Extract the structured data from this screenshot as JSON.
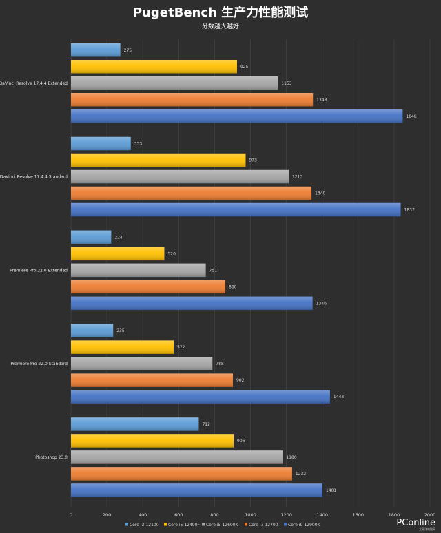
{
  "chart_data": {
    "type": "bar",
    "orientation": "horizontal",
    "title": "PugetBench 生产力性能测试",
    "subtitle": "分数越大越好",
    "categories": [
      "DaVinci Resolve 17.4.4 Extended",
      "DaVinci Resolve 17.4.4 Standard",
      "Premiere Pro 22.0 Extended",
      "Premiere Pro 22.0 Standard",
      "Photoshop 23.0"
    ],
    "series": [
      {
        "name": "Core i3-12100",
        "color": "#5b9bd5",
        "values": [
          275,
          333,
          224,
          235,
          712
        ]
      },
      {
        "name": "Core i5-12490F",
        "color": "#ffc000",
        "values": [
          925,
          973,
          520,
          572,
          906
        ]
      },
      {
        "name": "Core i5-12600K",
        "color": "#a5a5a5",
        "values": [
          1153,
          1213,
          751,
          788,
          1180
        ]
      },
      {
        "name": "Core i7-12700",
        "color": "#ed7d31",
        "values": [
          1348,
          1340,
          860,
          902,
          1232
        ]
      },
      {
        "name": "Core i9-12900K",
        "color": "#4472c4",
        "values": [
          1848,
          1837,
          1346,
          1443,
          1401
        ]
      }
    ],
    "xlim": [
      0,
      2000
    ],
    "xticks": [
      "0",
      "200",
      "400",
      "600",
      "800",
      "1000",
      "1200",
      "1400",
      "1600",
      "1800",
      "2000"
    ],
    "grid": true,
    "legend_position": "bottom"
  },
  "watermark": {
    "text": "PConline",
    "sub": "太平洋电脑网"
  }
}
